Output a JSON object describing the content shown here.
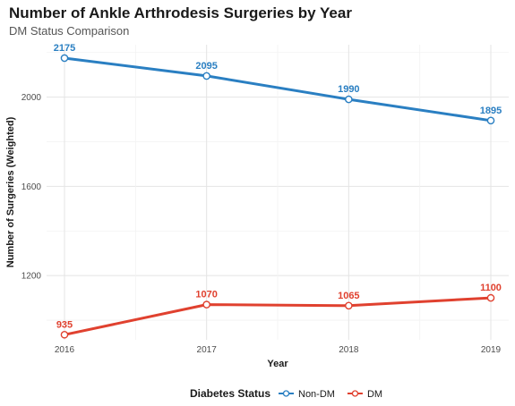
{
  "chart_data": {
    "type": "line",
    "title": "Number of Ankle Arthrodesis Surgeries by Year",
    "subtitle": "DM Status Comparison",
    "xlabel": "Year",
    "ylabel": "Number of Surgeries (Weighted)",
    "x": [
      2016,
      2017,
      2018,
      2019
    ],
    "x_tick_labels": [
      "2016",
      "2017",
      "2018",
      "2019"
    ],
    "y_ticks": [
      1200,
      1600,
      2000
    ],
    "y_tick_labels": [
      "1200",
      "1600",
      "2000"
    ],
    "ylim": [
      912,
      2235
    ],
    "grid": true,
    "legend": {
      "title": "Diabetes Status",
      "position": "bottom"
    },
    "series": [
      {
        "name": "Non-DM",
        "color": "#2a7fc2",
        "values": [
          2175,
          2095,
          1990,
          1895
        ],
        "labels": [
          "2175",
          "2095",
          "1990",
          "1895"
        ]
      },
      {
        "name": "DM",
        "color": "#e0412f",
        "values": [
          935,
          1070,
          1065,
          1100
        ],
        "labels": [
          "935",
          "1070",
          "1065",
          "1100"
        ]
      }
    ]
  }
}
